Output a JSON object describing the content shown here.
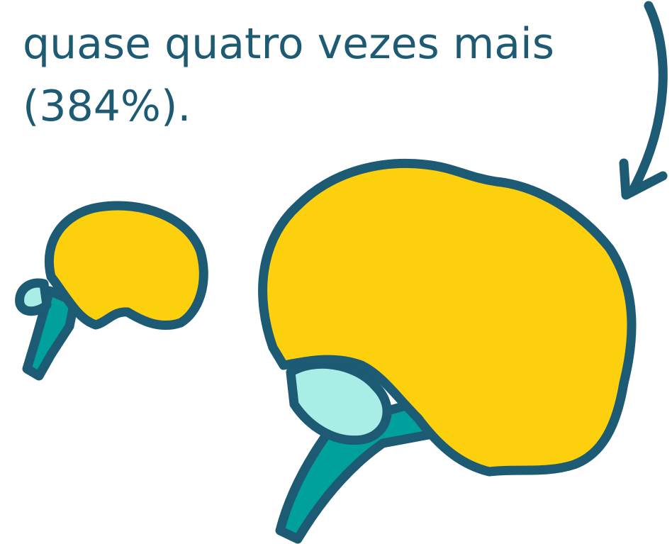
{
  "text": {
    "lines": [
      "quase quatro vezes mais",
      "(384%)."
    ]
  }
}
